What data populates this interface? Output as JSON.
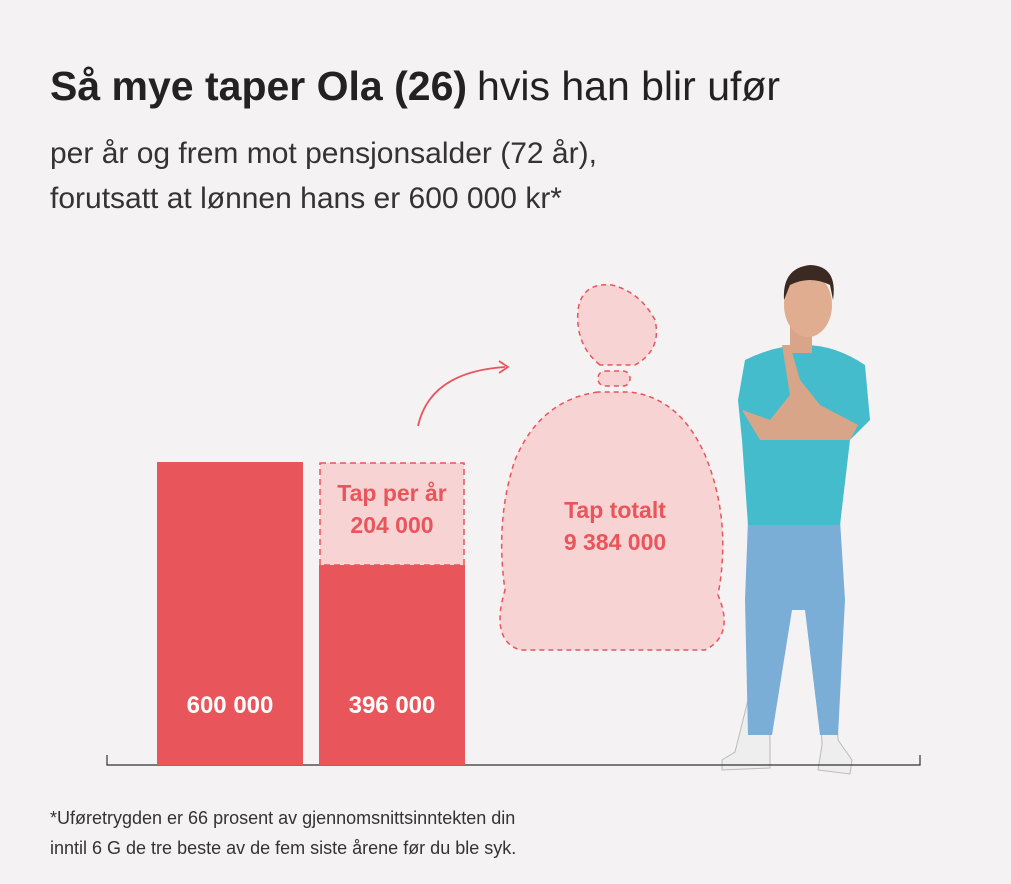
{
  "chart_data": {
    "type": "bar",
    "title": "Så mye taper Ola (26)",
    "title_suffix": "hvis han blir ufør",
    "subtitle": [
      "per år og frem mot pensjonsalder (72 år),",
      "forutsatt at lønnen hans er 600 000 kr*"
    ],
    "values": [
      600000,
      396000
    ],
    "value_labels": [
      "600 000",
      "396 000"
    ],
    "color": "#e8555a",
    "loss": {
      "label": "Tap per år",
      "value": 204000,
      "value_label": "204 000",
      "color": "#f8d3d4"
    },
    "total_loss": {
      "label": "Tap totalt",
      "value": 9384000,
      "value_label": "9 384 000"
    },
    "ylim": [
      0,
      600000
    ],
    "footnote": [
      "*Uføretrygden er 66 prosent av gjennomsnittsinntekten din",
      "inntil 6 G de tre beste av de fem siste årene før du ble syk."
    ]
  }
}
